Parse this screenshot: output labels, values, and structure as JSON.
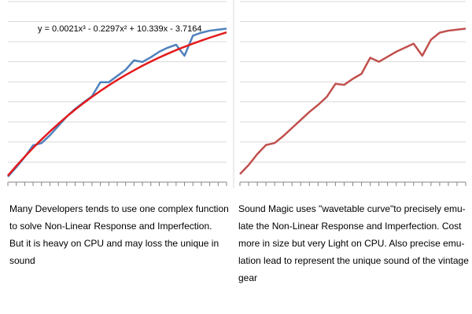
{
  "chart_data": [
    {
      "type": "line",
      "annotation": "y = 0.0021x³ - 0.2297x² + 10.339x - 3.7164",
      "x": [
        1,
        2,
        3,
        4,
        5,
        6,
        7,
        8,
        9,
        10,
        11,
        12,
        13,
        14,
        15,
        16,
        17,
        18,
        19,
        20,
        21,
        22,
        23,
        24,
        25,
        26,
        27
      ],
      "xlim": [
        1,
        27
      ],
      "ylim": [
        0,
        180
      ],
      "yticks": [
        0,
        20,
        40,
        60,
        80,
        100,
        120,
        140,
        160,
        180
      ],
      "grid": true,
      "series": [
        {
          "color": "#4f81bd",
          "values": [
            5.4,
            14.8,
            25,
            36.6,
            38.9,
            46.7,
            56,
            65.4,
            73,
            79.4,
            85.6,
            99.6,
            99.6,
            105.8,
            112,
            121.4,
            119.8,
            124.5,
            130,
            134,
            137,
            126,
            146,
            149,
            151,
            152,
            153
          ]
        },
        {
          "color": "#e31a1c",
          "values": [
            6.4,
            16.1,
            25.3,
            34.1,
            42.5,
            50.5,
            58.1,
            65.4,
            72.3,
            78.8,
            85,
            90.9,
            96.5,
            101.8,
            106.8,
            111.5,
            116,
            120.2,
            124.2,
            128,
            131.6,
            134.9,
            138.1,
            141.1,
            144,
            146.7,
            149.3
          ]
        }
      ]
    },
    {
      "type": "line",
      "x": [
        1,
        2,
        3,
        4,
        5,
        6,
        7,
        8,
        9,
        10,
        11,
        12,
        13,
        14,
        15,
        16,
        17,
        18,
        19,
        20,
        21,
        22,
        23,
        24,
        25,
        26,
        27
      ],
      "xlim": [
        1,
        27
      ],
      "ylim": [
        0,
        180
      ],
      "yticks": [
        0,
        20,
        40,
        60,
        80,
        100,
        120,
        140,
        160,
        180
      ],
      "grid": true,
      "series": [
        {
          "color": "#c0504d",
          "values": [
            8,
            17,
            28,
            37,
            39,
            46,
            54,
            62,
            70,
            77,
            85,
            98,
            97,
            103,
            108,
            124,
            120,
            125,
            130,
            134,
            138,
            126,
            142,
            149,
            151,
            152,
            153
          ]
        }
      ]
    }
  ],
  "captions": [
    [
      "Many Developers tends to use one complex function",
      "to solve Non-Linear Response and Imperfection.",
      "But it is heavy on CPU and may loss the unique in",
      "sound"
    ],
    [
      "Sound Magic uses \"wavetable curve\"to precisely emu-",
      "late the Non-Linear Response and Imperfection. Cost",
      "more in size but very Light on CPU. Also precise emu-",
      "lation lead to represent the unique sound of the vintage",
      "gear"
    ]
  ]
}
